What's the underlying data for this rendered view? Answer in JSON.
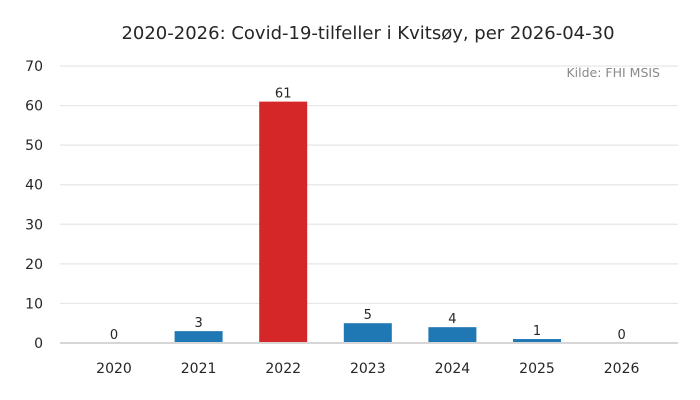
{
  "chart_data": {
    "type": "bar",
    "title": "2020-2026: Covid-19-tilfeller i Kvitsøy, per 2026-04-30",
    "source": "Kilde: FHI MSIS",
    "categories": [
      "2020",
      "2021",
      "2022",
      "2023",
      "2024",
      "2025",
      "2026"
    ],
    "values": [
      0,
      3,
      61,
      5,
      4,
      1,
      0
    ],
    "data_labels": [
      "0",
      "3",
      "61",
      "5",
      "4",
      "1",
      "0"
    ],
    "y_ticks": [
      "0",
      "10",
      "20",
      "30",
      "40",
      "50",
      "60",
      "70"
    ],
    "ylim": [
      0,
      70
    ],
    "xlabel": "",
    "ylabel": "",
    "grid": true,
    "colors": {
      "default_bar": "#1f77b4",
      "highlight_bar": "#d62728",
      "highlight_category": "2022"
    }
  }
}
